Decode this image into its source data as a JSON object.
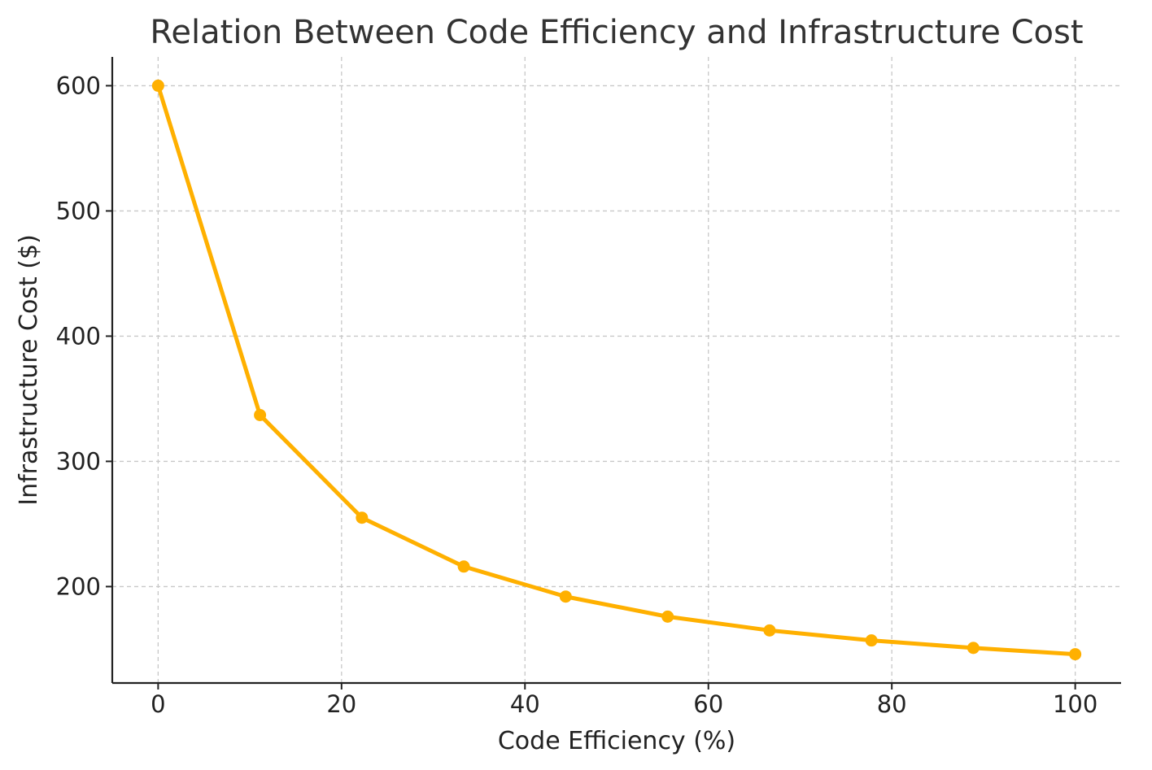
{
  "chart_data": {
    "type": "line",
    "title": "Relation Between Code Efficiency and Infrastructure Cost",
    "xlabel": "Code Efficiency (%)",
    "ylabel": "Infrastructure Cost ($)",
    "xlim": [
      -5,
      105
    ],
    "ylim": [
      123,
      623
    ],
    "x_ticks": [
      0,
      20,
      40,
      60,
      80,
      100
    ],
    "y_ticks": [
      200,
      300,
      400,
      500,
      600
    ],
    "grid": true,
    "series": [
      {
        "color": "#FFB000",
        "marker": "circle",
        "x": [
          0,
          11.11,
          22.22,
          33.33,
          44.44,
          55.56,
          66.67,
          77.78,
          88.89,
          100
        ],
        "y": [
          600,
          337,
          255,
          216,
          192,
          176,
          165,
          157,
          151,
          146
        ]
      }
    ]
  }
}
